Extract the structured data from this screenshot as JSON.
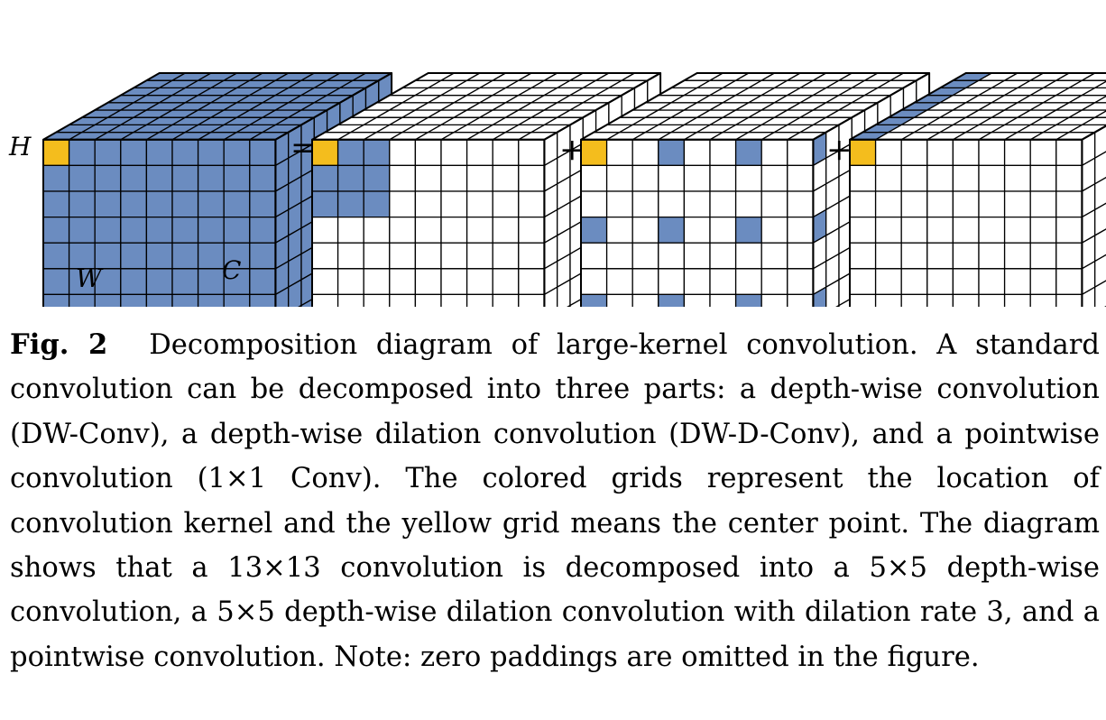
{
  "figure": {
    "axis_labels": {
      "h": "H",
      "w": "W",
      "c": "C"
    },
    "operators": [
      "=",
      "+",
      "+"
    ],
    "colors": {
      "kernel": "#6b8cc0",
      "center": "#f4bd1d",
      "empty": "#ffffff",
      "grid_line": "#000000"
    },
    "cubes": [
      {
        "role": "standard convolution",
        "front": "all",
        "side": "all",
        "top": "all"
      },
      {
        "role": "depth-wise convolution (DW-Conv)",
        "front": "5x5 block",
        "side": "none",
        "top": "none"
      },
      {
        "role": "depth-wise dilation convolution (DW-D-Conv)",
        "front": "5x5 dilated, rate 3",
        "side": "dilated column",
        "top": "none"
      },
      {
        "role": "pointwise convolution (1x1 Conv)",
        "front": "center only",
        "side": "none",
        "top": "channel row"
      }
    ]
  },
  "caption": {
    "label": "Fig. 2",
    "text": "Decomposition diagram of large-kernel convolution. A standard convolution can be decomposed into three parts: a depth-wise convolution (DW-Conv), a depth-wise dilation convolution (DW-D-Conv), and a pointwise convolution (1×1 Conv). The colored grids represent the location of convolution kernel and the yellow grid means the center point. The diagram shows that a 13×13 convolution is decomposed into a 5×5 depth-wise convolution, a 5×5 depth-wise dilation convolution with dilation rate 3, and a pointwise convolution. Note: zero paddings are omitted in the figure."
  }
}
